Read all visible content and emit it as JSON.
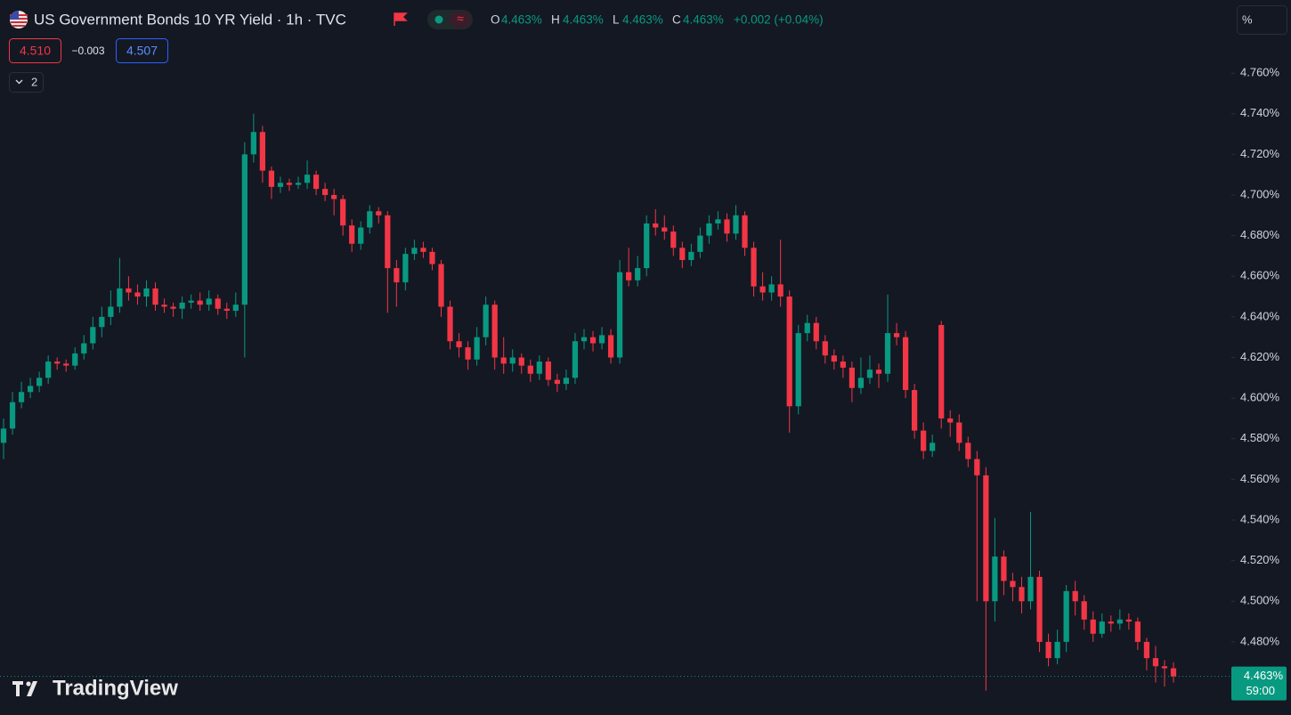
{
  "chart_data": {
    "type": "candlestick",
    "title": "US Government Bonds 10 YR Yield · 1h · TVC",
    "legend": [
      {
        "label": "O",
        "value": "4.463%"
      },
      {
        "label": "H",
        "value": "4.463%"
      },
      {
        "label": "L",
        "value": "4.463%"
      },
      {
        "label": "C",
        "value": "4.463%"
      }
    ],
    "change": "+0.002 (+0.04%)",
    "bid": "4.510",
    "spread": "−0.003",
    "ask": "4.507",
    "indicators": "2",
    "scale_mode": "%",
    "logo": "TradingView",
    "up_color": "#089981",
    "down_color": "#f23645",
    "grid": false,
    "open": [
      4.578,
      4.585,
      4.598,
      4.603,
      4.606,
      4.61,
      4.618,
      4.617,
      4.616,
      4.622,
      4.627,
      4.635,
      4.64,
      4.645,
      4.654,
      4.652,
      4.65,
      4.654,
      4.646,
      4.645,
      4.644,
      4.647,
      4.648,
      4.646,
      4.649,
      4.644,
      4.643,
      4.646,
      4.72,
      4.731,
      4.712,
      4.704,
      4.706,
      4.705,
      4.706,
      4.71,
      4.703,
      4.7,
      4.698,
      4.685,
      4.676,
      4.684,
      4.692,
      4.69,
      4.664,
      4.657,
      4.671,
      4.674,
      4.672,
      4.666,
      4.645,
      4.628,
      4.625,
      4.619,
      4.63,
      4.646,
      4.62,
      4.617,
      4.62,
      4.616,
      4.612,
      4.618,
      4.609,
      4.607,
      4.61,
      4.628,
      4.63,
      4.627,
      4.631,
      4.62,
      4.662,
      4.658,
      4.664,
      4.686,
      4.684,
      4.682,
      4.674,
      4.668,
      4.672,
      4.68,
      4.686,
      4.688,
      4.681,
      4.69,
      4.674,
      4.655,
      4.652,
      4.656,
      4.65,
      4.596,
      4.632,
      4.637,
      4.628,
      4.621,
      4.618,
      4.615,
      4.605,
      4.61,
      4.614,
      4.612,
      4.632,
      4.63,
      4.604,
      4.584,
      4.574,
      4.636,
      4.59,
      4.588,
      4.578,
      4.57,
      4.562,
      4.5,
      4.522,
      4.51,
      4.507,
      4.5,
      4.512,
      4.48,
      4.472,
      4.48,
      4.505,
      4.5,
      4.491,
      4.484,
      4.49,
      4.489,
      4.491,
      4.49,
      4.48,
      4.472,
      4.468,
      4.467
    ],
    "high": [
      4.59,
      4.603,
      4.608,
      4.61,
      4.613,
      4.621,
      4.62,
      4.619,
      4.625,
      4.631,
      4.64,
      4.645,
      4.653,
      4.669,
      4.66,
      4.656,
      4.658,
      4.657,
      4.649,
      4.647,
      4.65,
      4.651,
      4.652,
      4.653,
      4.651,
      4.647,
      4.652,
      4.726,
      4.74,
      4.734,
      4.714,
      4.709,
      4.708,
      4.709,
      4.717,
      4.712,
      4.706,
      4.703,
      4.7,
      4.688,
      4.687,
      4.695,
      4.694,
      4.692,
      4.668,
      4.674,
      4.678,
      4.677,
      4.674,
      4.668,
      4.648,
      4.632,
      4.628,
      4.635,
      4.65,
      4.648,
      4.63,
      4.624,
      4.622,
      4.619,
      4.621,
      4.62,
      4.612,
      4.614,
      4.632,
      4.634,
      4.633,
      4.635,
      4.634,
      4.668,
      4.674,
      4.67,
      4.69,
      4.693,
      4.69,
      4.685,
      4.677,
      4.676,
      4.684,
      4.69,
      4.692,
      4.691,
      4.695,
      4.692,
      4.677,
      4.662,
      4.66,
      4.678,
      4.653,
      4.636,
      4.641,
      4.64,
      4.631,
      4.624,
      4.621,
      4.618,
      4.62,
      4.621,
      4.617,
      4.651,
      4.637,
      4.633,
      4.607,
      4.588,
      4.582,
      4.638,
      4.594,
      4.592,
      4.581,
      4.574,
      4.566,
      4.541,
      4.525,
      4.514,
      4.512,
      4.544,
      4.515,
      4.484,
      4.486,
      4.508,
      4.51,
      4.503,
      4.495,
      4.494,
      4.493,
      4.496,
      4.494,
      4.492,
      4.482,
      4.478,
      4.471,
      4.47
    ],
    "low": [
      4.57,
      4.582,
      4.595,
      4.6,
      4.603,
      4.607,
      4.614,
      4.613,
      4.614,
      4.619,
      4.624,
      4.63,
      4.636,
      4.642,
      4.648,
      4.646,
      4.645,
      4.643,
      4.642,
      4.64,
      4.639,
      4.644,
      4.643,
      4.643,
      4.641,
      4.639,
      4.64,
      4.62,
      4.716,
      4.706,
      4.698,
      4.701,
      4.702,
      4.703,
      4.703,
      4.7,
      4.697,
      4.69,
      4.68,
      4.672,
      4.673,
      4.681,
      4.686,
      4.642,
      4.645,
      4.653,
      4.668,
      4.669,
      4.663,
      4.64,
      4.624,
      4.62,
      4.614,
      4.616,
      4.626,
      4.614,
      4.612,
      4.613,
      4.612,
      4.608,
      4.609,
      4.606,
      4.603,
      4.604,
      4.607,
      4.624,
      4.623,
      4.624,
      4.617,
      4.617,
      4.655,
      4.655,
      4.66,
      4.68,
      4.678,
      4.67,
      4.664,
      4.665,
      4.669,
      4.676,
      4.683,
      4.677,
      4.678,
      4.67,
      4.65,
      4.648,
      4.648,
      4.645,
      4.583,
      4.592,
      4.628,
      4.624,
      4.617,
      4.614,
      4.61,
      4.598,
      4.602,
      4.607,
      4.605,
      4.608,
      4.626,
      4.6,
      4.58,
      4.57,
      4.571,
      4.585,
      4.581,
      4.574,
      4.566,
      4.5,
      4.456,
      4.49,
      4.503,
      4.5,
      4.494,
      4.496,
      4.475,
      4.468,
      4.469,
      4.475,
      4.493,
      4.486,
      4.48,
      4.482,
      4.485,
      4.486,
      4.486,
      4.476,
      4.466,
      4.46,
      4.458,
      4.46
    ],
    "close": [
      4.585,
      4.598,
      4.603,
      4.606,
      4.61,
      4.618,
      4.617,
      4.616,
      4.622,
      4.627,
      4.635,
      4.64,
      4.645,
      4.654,
      4.652,
      4.65,
      4.654,
      4.646,
      4.645,
      4.644,
      4.647,
      4.648,
      4.646,
      4.649,
      4.644,
      4.643,
      4.646,
      4.72,
      4.731,
      4.712,
      4.704,
      4.706,
      4.705,
      4.706,
      4.71,
      4.703,
      4.7,
      4.698,
      4.685,
      4.676,
      4.684,
      4.692,
      4.69,
      4.664,
      4.657,
      4.671,
      4.674,
      4.672,
      4.666,
      4.645,
      4.628,
      4.625,
      4.619,
      4.63,
      4.646,
      4.62,
      4.617,
      4.62,
      4.616,
      4.612,
      4.618,
      4.609,
      4.607,
      4.61,
      4.628,
      4.63,
      4.627,
      4.631,
      4.62,
      4.662,
      4.658,
      4.664,
      4.686,
      4.684,
      4.682,
      4.674,
      4.668,
      4.672,
      4.68,
      4.686,
      4.688,
      4.681,
      4.69,
      4.674,
      4.655,
      4.652,
      4.656,
      4.65,
      4.596,
      4.632,
      4.637,
      4.628,
      4.621,
      4.618,
      4.615,
      4.605,
      4.61,
      4.614,
      4.612,
      4.632,
      4.63,
      4.604,
      4.584,
      4.574,
      4.578,
      4.59,
      4.588,
      4.578,
      4.57,
      4.562,
      4.5,
      4.522,
      4.51,
      4.507,
      4.5,
      4.512,
      4.48,
      4.472,
      4.48,
      4.505,
      4.5,
      4.491,
      4.484,
      4.49,
      4.489,
      4.491,
      4.49,
      4.48,
      4.472,
      4.468,
      4.467,
      4.463
    ],
    "ylim": [
      4.444,
      4.796
    ],
    "yticks": [
      {
        "value": 4.48,
        "label": "4.480%"
      },
      {
        "value": 4.5,
        "label": "4.500%"
      },
      {
        "value": 4.52,
        "label": "4.520%"
      },
      {
        "value": 4.54,
        "label": "4.540%"
      },
      {
        "value": 4.56,
        "label": "4.560%"
      },
      {
        "value": 4.58,
        "label": "4.580%"
      },
      {
        "value": 4.6,
        "label": "4.600%"
      },
      {
        "value": 4.62,
        "label": "4.620%"
      },
      {
        "value": 4.64,
        "label": "4.640%"
      },
      {
        "value": 4.66,
        "label": "4.660%"
      },
      {
        "value": 4.68,
        "label": "4.680%"
      },
      {
        "value": 4.7,
        "label": "4.700%"
      },
      {
        "value": 4.72,
        "label": "4.720%"
      },
      {
        "value": 4.74,
        "label": "4.740%"
      },
      {
        "value": 4.76,
        "label": "4.760%"
      }
    ],
    "last_price": {
      "value": 4.463,
      "label": "4.463%"
    },
    "countdown": "59:00"
  }
}
